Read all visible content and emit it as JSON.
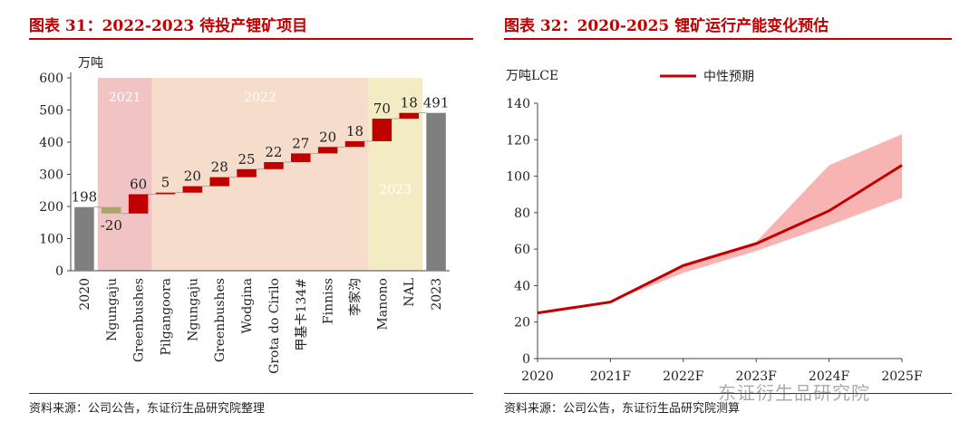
{
  "panels": {
    "left": {
      "title": "图表 31：2022-2023 待投产锂矿项目",
      "source": "资料来源：公司公告，东证衍生品研究院整理"
    },
    "right": {
      "title": "图表 32：2020-2025 锂矿运行产能变化预估",
      "source": "资料来源：公司公告，东证衍生品研究院测算"
    }
  },
  "watermark": "东证衍生品研究院",
  "colors": {
    "accent": "#c00000",
    "total_bar": "#7f7f7f",
    "negative_bar": "#a9a66b",
    "band_2021": "#f0c4c4",
    "band_2022": "#f5dccb",
    "band_2023": "#f3ebc3",
    "line": "#c00000",
    "range_fill": "#f7a6a6"
  },
  "chart_data": [
    {
      "type": "bar",
      "subtype": "waterfall",
      "ylabel": "万吨",
      "ylim": [
        0,
        600
      ],
      "yticks": [
        0,
        100,
        200,
        300,
        400,
        500,
        600
      ],
      "categories": [
        "2020",
        "Ngungaju",
        "Greenbushes",
        "Pilgangoora",
        "Ngungaju",
        "Greenbushes",
        "Wodgina",
        "Grota do Cirilo",
        "甲基卡134#",
        "Finniss",
        "李家沟",
        "Manono",
        "NAL",
        "2023"
      ],
      "values": [
        198,
        -20,
        60,
        5,
        20,
        28,
        25,
        22,
        27,
        20,
        18,
        70,
        18,
        491
      ],
      "value_labels": [
        "198",
        "-20",
        "60",
        "5",
        "20",
        "28",
        "25",
        "22",
        "27",
        "20",
        "18",
        "70",
        "18",
        "491"
      ],
      "bar_kind": [
        "total",
        "neg",
        "pos",
        "pos",
        "pos",
        "pos",
        "pos",
        "pos",
        "pos",
        "pos",
        "pos",
        "pos",
        "pos",
        "total"
      ],
      "periods": [
        {
          "label": "2021",
          "first": 1,
          "last": 2
        },
        {
          "label": "2022",
          "first": 3,
          "last": 10
        },
        {
          "label": "2023",
          "first": 11,
          "last": 12
        }
      ]
    },
    {
      "type": "line",
      "ylabel": "万吨LCE",
      "ylim": [
        0,
        140
      ],
      "yticks": [
        0,
        20,
        40,
        60,
        80,
        100,
        120,
        140
      ],
      "x": [
        "2020",
        "2021F",
        "2022F",
        "2023F",
        "2024F",
        "2025F"
      ],
      "series": [
        {
          "name": "中性预期",
          "values": [
            25,
            31,
            51,
            63,
            81,
            106
          ]
        }
      ],
      "range": {
        "upper": [
          25,
          31,
          52,
          64,
          106,
          123
        ],
        "lower": [
          25,
          31,
          47,
          59,
          73,
          88
        ]
      },
      "legend": "top-center"
    }
  ]
}
